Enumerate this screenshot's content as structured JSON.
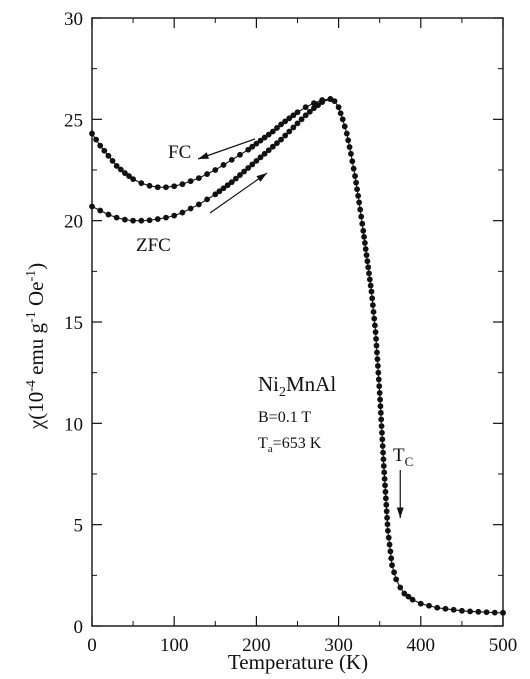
{
  "chart_data": {
    "type": "scatter",
    "title": "",
    "xlabel": "Temperature (K)",
    "ylabel": {
      "chi": "χ",
      "open": "(10",
      "exp1": "-4",
      "mid": " emu g",
      "exp2": "-1",
      "oe": " Oe",
      "exp3": "-1",
      "close": ")"
    },
    "xlim": [
      0,
      500
    ],
    "ylim": [
      0,
      30
    ],
    "xticks": [
      0,
      100,
      200,
      300,
      400,
      500
    ],
    "yticks": [
      0,
      5,
      10,
      15,
      20,
      25,
      30
    ],
    "grid": false,
    "colors": {
      "marker": "#111111",
      "line": "#111111"
    },
    "series": [
      {
        "name": "FC",
        "direction": "cooling",
        "x": [
          0,
          10,
          20,
          30,
          40,
          50,
          60,
          70,
          80,
          90,
          100,
          110,
          120,
          130,
          140,
          150,
          160,
          170,
          180,
          190,
          200,
          210,
          220,
          230,
          240,
          250,
          260,
          270,
          280,
          290
        ],
        "y": [
          24.3,
          23.7,
          23.2,
          22.7,
          22.35,
          22.05,
          21.85,
          21.72,
          21.65,
          21.65,
          21.7,
          21.8,
          21.95,
          22.1,
          22.3,
          22.5,
          22.75,
          23.0,
          23.25,
          23.5,
          23.8,
          24.1,
          24.4,
          24.75,
          25.05,
          25.35,
          25.6,
          25.8,
          25.95,
          26.0
        ]
      },
      {
        "name": "ZFC",
        "direction": "warming",
        "x": [
          0,
          10,
          20,
          30,
          40,
          50,
          60,
          70,
          80,
          90,
          100,
          110,
          120,
          130,
          140,
          150,
          160,
          170,
          180,
          190,
          200,
          210,
          220,
          230,
          240,
          250,
          260,
          270,
          280,
          290
        ],
        "y": [
          20.7,
          20.5,
          20.3,
          20.15,
          20.05,
          20.0,
          20.0,
          20.02,
          20.08,
          20.15,
          20.25,
          20.4,
          20.6,
          20.8,
          21.05,
          21.3,
          21.6,
          21.9,
          22.25,
          22.6,
          22.95,
          23.3,
          23.65,
          24.0,
          24.4,
          24.8,
          25.2,
          25.55,
          25.85,
          26.0
        ]
      },
      {
        "name": "",
        "direction": "high-temperature",
        "x": [
          290,
          295,
          300,
          305,
          310,
          315,
          320,
          325,
          330,
          335,
          340,
          345,
          350,
          355,
          360,
          365,
          370,
          375,
          380,
          390,
          400,
          410,
          420,
          430,
          440,
          450,
          460,
          470,
          480,
          490,
          500
        ],
        "y": [
          26.0,
          25.9,
          25.6,
          25.0,
          24.3,
          23.3,
          22.2,
          20.9,
          19.5,
          18.0,
          16.5,
          14.5,
          11.5,
          7.9,
          4.7,
          3.0,
          2.3,
          1.9,
          1.6,
          1.3,
          1.1,
          1.0,
          0.9,
          0.85,
          0.8,
          0.75,
          0.72,
          0.7,
          0.68,
          0.66,
          0.65
        ]
      }
    ],
    "annotations": {
      "fc_label": "FC",
      "zfc_label": "ZFC",
      "compound": {
        "base1": "Ni",
        "sub": "2",
        "base2": "MnAl"
      },
      "field": "B=0.1 T",
      "anneal": {
        "base": "T",
        "sub": "a",
        "rest": "=653 K"
      },
      "tc": {
        "base": "T",
        "sub": "C",
        "x": 375
      }
    }
  }
}
